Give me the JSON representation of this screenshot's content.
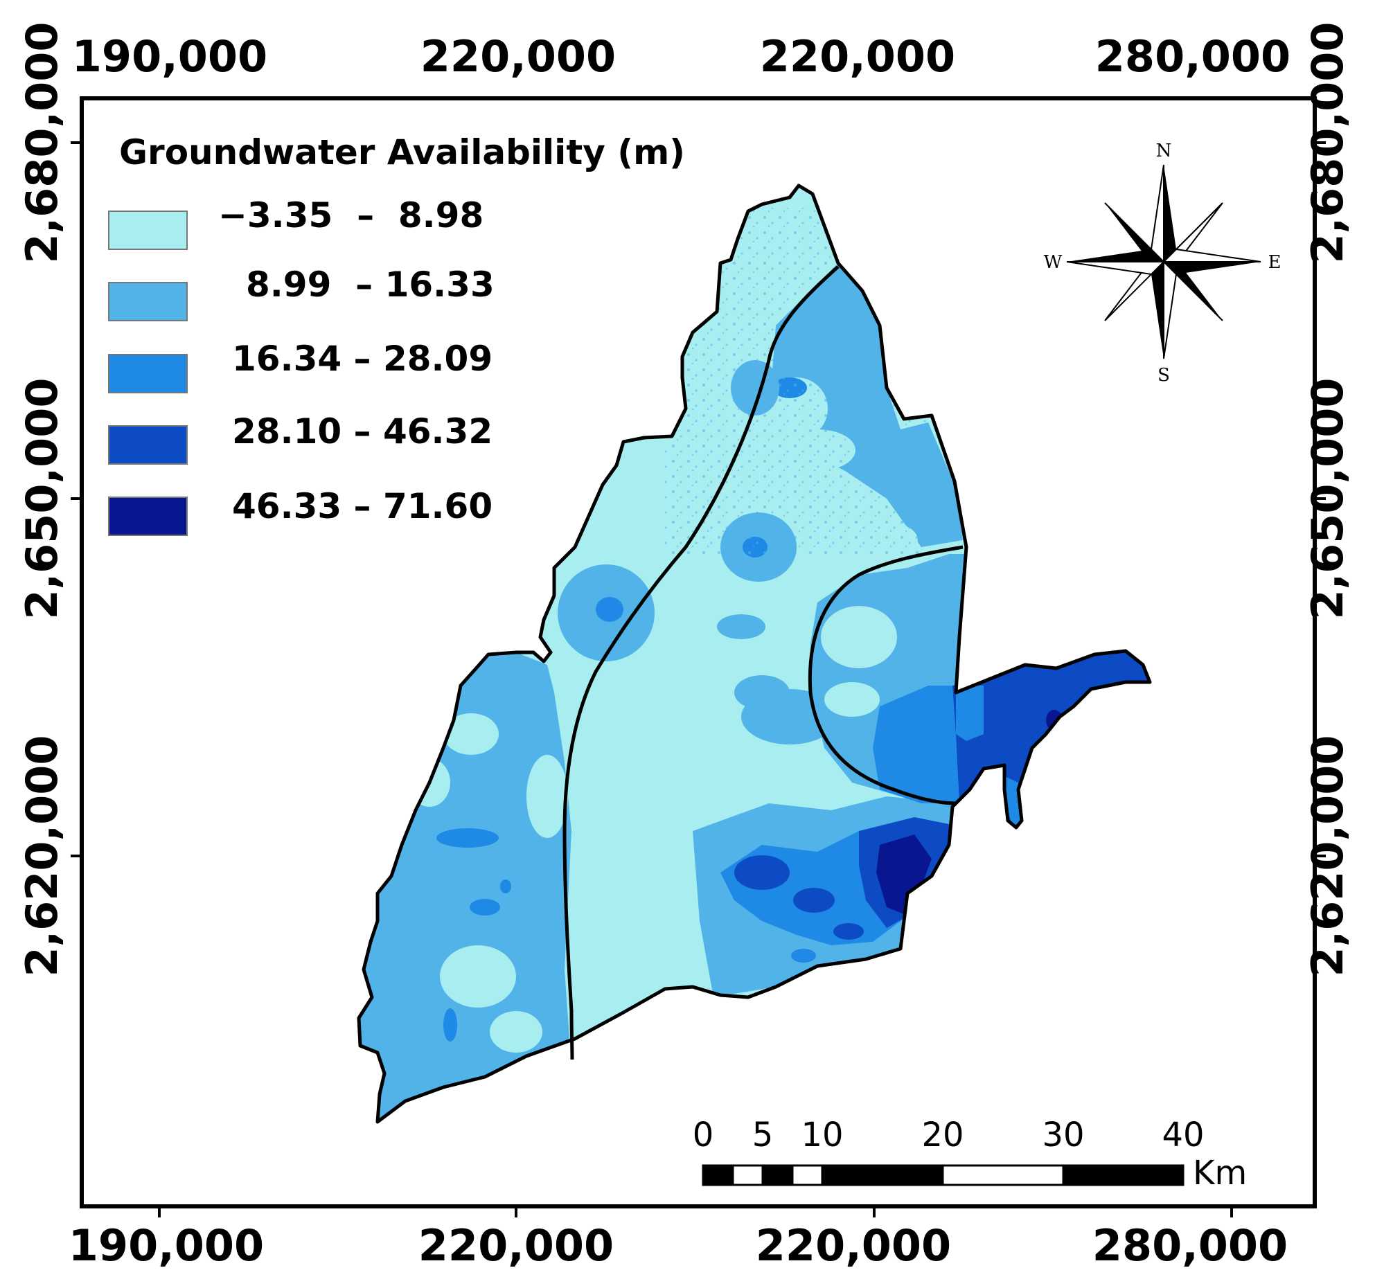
{
  "map": {
    "legend": {
      "title": "Groundwater Availability (m)",
      "classes": [
        {
          "label": "−3.35  –  8.98",
          "color": "#a8eef0"
        },
        {
          "label": "8.99  – 16.33",
          "color": "#52b3e8"
        },
        {
          "label": "16.34 – 28.09",
          "color": "#1f8ae6"
        },
        {
          "label": "28.10 – 46.32",
          "color": "#0d4bc4"
        },
        {
          "label": "46.33 – 71.60",
          "color": "#08178f"
        }
      ]
    },
    "top_axis": [
      "190,000",
      "220,000",
      "220,000",
      "280,000"
    ],
    "bottom_axis": [
      "190,000",
      "220,000",
      "220,000",
      "280,000"
    ],
    "left_axis": [
      "2,680,000",
      "2,650,000",
      "2,620,000"
    ],
    "right_axis": [
      "2,680,000",
      "2,650,000",
      "2,620,000"
    ],
    "compass": {
      "n": "N",
      "s": "S",
      "e": "E",
      "w": "W"
    },
    "scale_bar": {
      "ticks": [
        "0",
        "5",
        "10",
        "20",
        "30",
        "40"
      ],
      "unit": "Km"
    }
  }
}
